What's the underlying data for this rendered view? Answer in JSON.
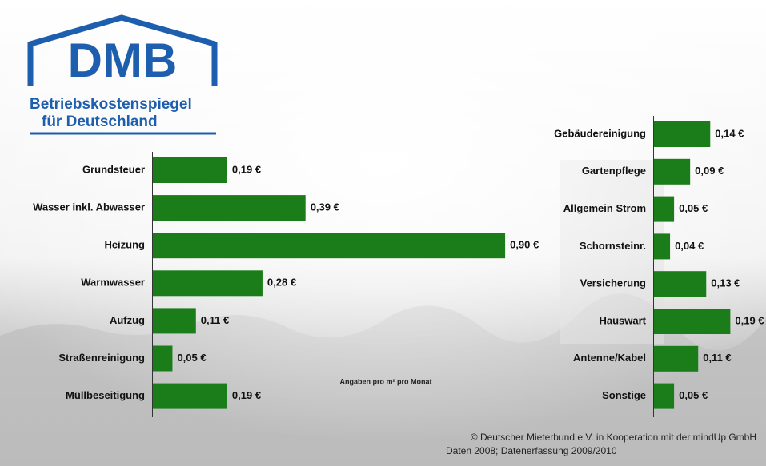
{
  "logo": {
    "title": "DMB",
    "lines": [
      "Betriebskostenspiegel",
      "für Deutschland"
    ]
  },
  "note": "Angaben pro m² pro Monat",
  "footer": [
    "© Deutscher Mieterbund e.V. in Kooperation mit der mindUp GmbH",
    "Daten 2008; Datenerfassung 2009/2010"
  ],
  "chart_data": [
    {
      "type": "bar",
      "orientation": "horizontal",
      "color": "#1a7d1a",
      "categories": [
        "Grundsteuer",
        "Wasser inkl. Abwasser",
        "Heizung",
        "Warmwasser",
        "Aufzug",
        "Straßenreinigung",
        "Müllbeseitigung"
      ],
      "values": [
        0.19,
        0.39,
        0.9,
        0.28,
        0.11,
        0.05,
        0.19
      ],
      "value_labels": [
        "0,19 €",
        "0,39 €",
        "0,90 €",
        "0,28 €",
        "0,11 €",
        "0,05 €",
        "0,19 €"
      ]
    },
    {
      "type": "bar",
      "orientation": "horizontal",
      "color": "#1a7d1a",
      "categories": [
        "Gebäudereinigung",
        "Gartenpflege",
        "Allgemein Strom",
        "Schornsteinr.",
        "Versicherung",
        "Hauswart",
        "Antenne/Kabel",
        "Sonstige"
      ],
      "values": [
        0.14,
        0.09,
        0.05,
        0.04,
        0.13,
        0.19,
        0.11,
        0.05
      ],
      "value_labels": [
        "0,14 €",
        "0,09 €",
        "0,05 €",
        "0,04 €",
        "0,13 €",
        "0,19 €",
        "0,11 €",
        "0,05 €"
      ]
    }
  ]
}
